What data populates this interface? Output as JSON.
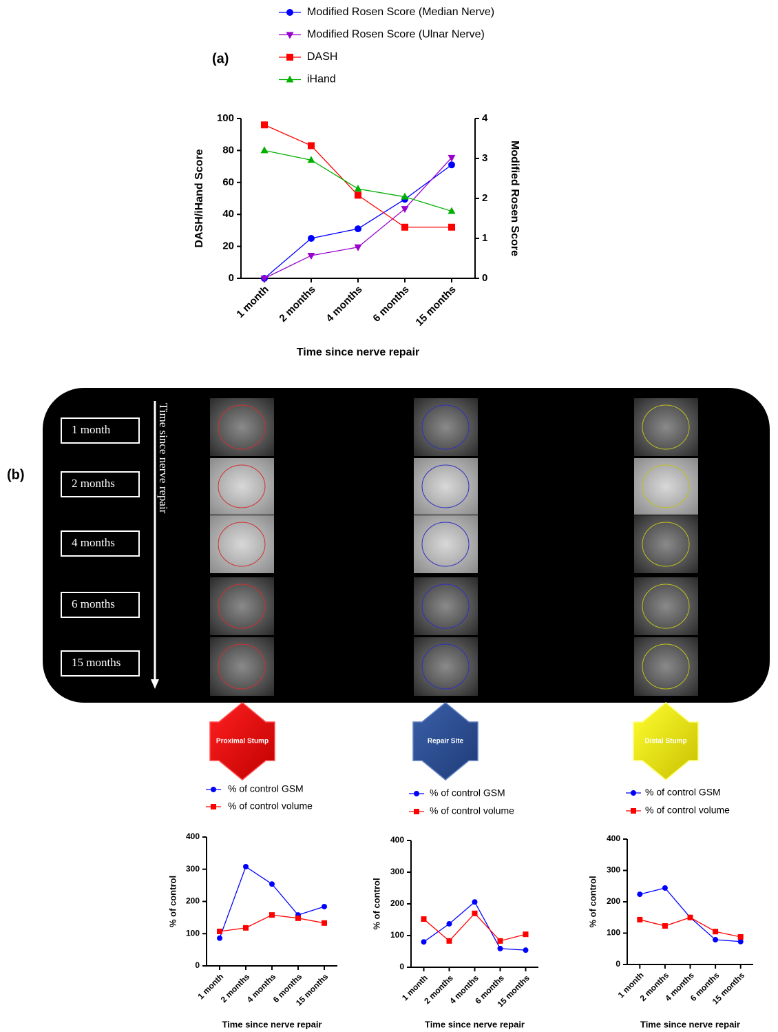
{
  "panels": {
    "a": "(a)",
    "b": "(b)"
  },
  "figure_b": {
    "time_axis_label": "Time since nerve repair",
    "time_points": [
      "1 month",
      "2 months",
      "4 months",
      "6 months",
      "15 months"
    ],
    "sites": [
      "Proximal Stump",
      "Repair Site",
      "Distal Stump"
    ]
  },
  "chart_data": [
    {
      "type": "line",
      "categories": [
        "1 month",
        "2 months",
        "4 months",
        "6 months",
        "15 months"
      ],
      "x_label": "Time since nerve repair",
      "y_label": "DASH/iHand Score",
      "y2_label": "Modified Rosen Score",
      "ylim": [
        0,
        100
      ],
      "yticks": [
        0,
        20,
        40,
        60,
        80,
        100
      ],
      "y2lim": [
        0,
        4
      ],
      "y2ticks": [
        0,
        1,
        2,
        3,
        4
      ],
      "grid": false,
      "series": [
        {
          "name": "Modified Rosen Score (Median Nerve)",
          "color": "#0000ff",
          "marker": "circle",
          "axis": "y2",
          "values": [
            0,
            1.0,
            1.24,
            1.98,
            2.84
          ]
        },
        {
          "name": "Modified Rosen Score (Ulnar Nerve)",
          "color": "#9900cc",
          "marker": "triangle-down",
          "axis": "y2",
          "values": [
            0,
            0.57,
            0.78,
            1.74,
            3.02
          ]
        },
        {
          "name": "DASH",
          "color": "#ff0000",
          "marker": "square",
          "values": [
            96,
            83,
            52,
            32,
            32
          ]
        },
        {
          "name": "iHand",
          "color": "#00b000",
          "marker": "triangle",
          "values": [
            80,
            74,
            56,
            51,
            42
          ]
        }
      ]
    },
    {
      "type": "line",
      "categories": [
        "1 month",
        "2 months",
        "4 months",
        "6 months",
        "15 months"
      ],
      "x_label": "Time since nerve repair",
      "y_label": "% of control",
      "ylim": [
        0,
        400
      ],
      "yticks": [
        0,
        100,
        200,
        300,
        400
      ],
      "grid": false,
      "series": [
        {
          "name": "% of control GSM",
          "color": "#0000ff",
          "marker": "circle",
          "values": [
            86,
            308,
            254,
            158,
            184
          ]
        },
        {
          "name": "% of control volume",
          "color": "#ff0000",
          "marker": "square",
          "values": [
            107,
            118,
            158,
            148,
            133
          ]
        }
      ]
    },
    {
      "type": "line",
      "categories": [
        "1 month",
        "2 months",
        "4 months",
        "6 months",
        "15 months"
      ],
      "x_label": "Time since nerve repair",
      "y_label": "% of control",
      "ylim": [
        0,
        400
      ],
      "yticks": [
        0,
        100,
        200,
        300,
        400
      ],
      "grid": false,
      "series": [
        {
          "name": "% of control GSM",
          "color": "#0000ff",
          "marker": "circle",
          "values": [
            80,
            137,
            206,
            59,
            54
          ]
        },
        {
          "name": "% of control volume",
          "color": "#ff0000",
          "marker": "square",
          "values": [
            152,
            83,
            170,
            83,
            104
          ]
        }
      ]
    },
    {
      "type": "line",
      "categories": [
        "1 month",
        "2 months",
        "4 months",
        "6 months",
        "15 months"
      ],
      "x_label": "Time since nerve repair",
      "y_label": "% of control",
      "ylim": [
        0,
        400
      ],
      "yticks": [
        0,
        100,
        200,
        300,
        400
      ],
      "grid": false,
      "series": [
        {
          "name": "% of control GSM",
          "color": "#0000ff",
          "marker": "circle",
          "values": [
            224,
            244,
            150,
            79,
            73
          ]
        },
        {
          "name": "% of control volume",
          "color": "#ff0000",
          "marker": "square",
          "values": [
            143,
            123,
            150,
            105,
            88
          ]
        }
      ]
    }
  ]
}
